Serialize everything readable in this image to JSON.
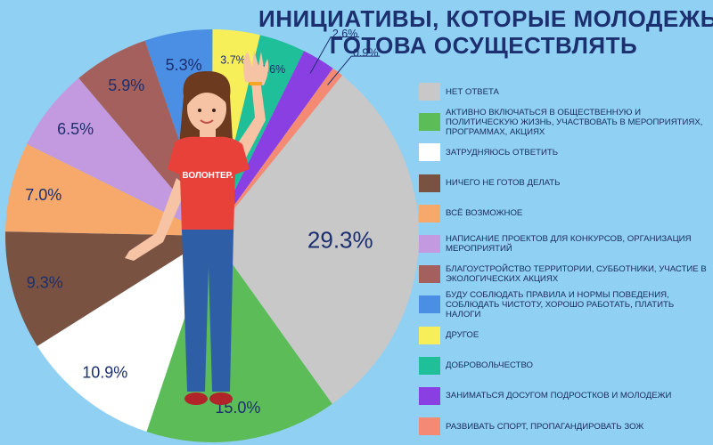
{
  "header": {
    "title_line1": "ИНИЦИАТИВЫ, КОТОРЫЕ МОЛОДЕЖЬ",
    "title_line2": "ГОТОВА ОСУЩЕСТВЛЯТЬ"
  },
  "figure": {
    "badge_text": "ВОЛОНТЕР."
  },
  "chart_data": {
    "type": "pie",
    "title": "ИНИЦИАТИВЫ, КОТОРЫЕ МОЛОДЕЖЬ ГОТОВА ОСУЩЕСТВЛЯТЬ",
    "unit": "%",
    "legend_position": "right",
    "slices": [
      {
        "label": "НЕТ ОТВЕТА",
        "value": 29.3,
        "display": "29.3%",
        "color": "#c8c8c8"
      },
      {
        "label": "АКТИВНО ВКЛЮЧАТЬСЯ В ОБЩЕСТВЕННУЮ И ПОЛИТИЧЕСКУЮ ЖИЗНЬ, УЧАСТВОВАТЬ В МЕРОПРИЯТИЯХ, ПРОГРАММАХ, АКЦИЯХ",
        "value": 15.0,
        "display": "15.0%",
        "color": "#5cbd58"
      },
      {
        "label": "ЗАТРУДНЯЮСЬ ОТВЕТИТЬ",
        "value": 10.9,
        "display": "10.9%",
        "color": "#ffffff"
      },
      {
        "label": "НИЧЕГО НЕ ГОТОВ ДЕЛАТЬ",
        "value": 9.3,
        "display": "9.3%",
        "color": "#7a5242"
      },
      {
        "label": "ВСЁ ВОЗМОЖНОЕ",
        "value": 7.0,
        "display": "7.0%",
        "color": "#f7a96b"
      },
      {
        "label": "НАПИСАНИЕ ПРОЕКТОВ ДЛЯ КОНКУРСОВ, ОРГАНИЗАЦИЯ МЕРОПРИЯТИЙ",
        "value": 6.5,
        "display": "6.5%",
        "color": "#c39ae0"
      },
      {
        "label": "БЛАГОУСТРОЙСТВО ТЕРРИТОРИИ, СУББОТНИКИ, УЧАСТИЕ В ЭКОЛОГИЧЕСКИХ АКЦИЯХ",
        "value": 5.9,
        "display": "5.9%",
        "color": "#a4605c"
      },
      {
        "label": "БУДУ СОБЛЮДАТЬ ПРАВИЛА И НОРМЫ ПОВЕДЕНИЯ, СОБЛЮДАТЬ ЧИСТОТУ, ХОРОШО РАБОТАТЬ, ПЛАТИТЬ НАЛОГИ",
        "value": 5.3,
        "display": "5.3%",
        "color": "#4a8fe3"
      },
      {
        "label": "ДРУГОЕ",
        "value": 3.7,
        "display": "3.7%",
        "color": "#f7ef5a"
      },
      {
        "label": "ДОБРОВОЛЬЧЕСТВО",
        "value": 3.6,
        "display": "3.6%",
        "color": "#1fbf99"
      },
      {
        "label": "ЗАНИМАТЬСЯ ДОСУГОМ ПОДРОСТКОВ И МОЛОДЕЖИ",
        "value": 2.6,
        "display": "2.6%",
        "color": "#8a3fe3"
      },
      {
        "label": "РАЗВИВАТЬ СПОРТ, ПРОПАГАНДИРОВАТЬ ЗОЖ",
        "value": 0.9,
        "display": "0.9%",
        "color": "#f58a74"
      }
    ]
  }
}
